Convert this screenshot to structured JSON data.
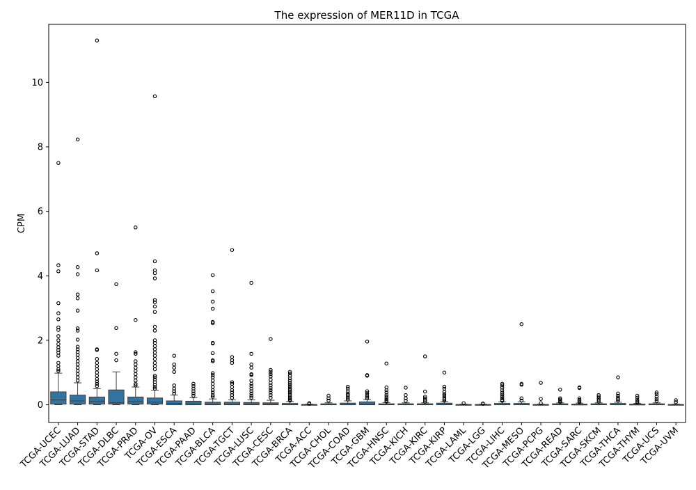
{
  "chart_data": {
    "type": "box",
    "title": "The expression of MER11D in TCGA",
    "xlabel": "",
    "ylabel": "CPM",
    "ylim": [
      -0.55,
      11.8
    ],
    "yticks": [
      0,
      2,
      4,
      6,
      8,
      10
    ],
    "box_color": "#3274a1",
    "categories": [
      "TCGA-UCEC",
      "TCGA-LUAD",
      "TCGA-STAD",
      "TCGA-DLBC",
      "TCGA-PRAD",
      "TCGA-OV",
      "TCGA-ESCA",
      "TCGA-PAAD",
      "TCGA-BLCA",
      "TCGA-TGCT",
      "TCGA-LUSC",
      "TCGA-CESC",
      "TCGA-BRCA",
      "TCGA-ACC",
      "TCGA-CHOL",
      "TCGA-COAD",
      "TCGA-GBM",
      "TCGA-HNSC",
      "TCGA-KICH",
      "TCGA-KIRC",
      "TCGA-KIRP",
      "TCGA-LAML",
      "TCGA-LGG",
      "TCGA-LIHC",
      "TCGA-MESO",
      "TCGA-PCPG",
      "TCGA-READ",
      "TCGA-SARC",
      "TCGA-SKCM",
      "TCGA-THCA",
      "TCGA-THYM",
      "TCGA-UCS",
      "TCGA-UVM"
    ],
    "boxes": [
      {
        "min": 0.0,
        "q1": 0.02,
        "median": 0.15,
        "q3": 0.4,
        "max": 0.98,
        "outliers": [
          7.5,
          4.33,
          4.14,
          3.15,
          2.84,
          2.65,
          2.4,
          2.32,
          2.13,
          2.0,
          1.88,
          1.78,
          1.7,
          1.62,
          1.52,
          1.3,
          1.2,
          1.1,
          1.05
        ]
      },
      {
        "min": 0.0,
        "q1": 0.02,
        "median": 0.12,
        "q3": 0.3,
        "max": 0.68,
        "outliers": [
          8.23,
          4.27,
          4.05,
          3.42,
          3.3,
          2.92,
          2.37,
          2.3,
          2.02,
          1.8,
          1.72,
          1.64,
          1.55,
          1.45,
          1.35,
          1.25,
          1.15,
          1.05,
          0.95,
          0.85,
          0.75
        ]
      },
      {
        "min": 0.0,
        "q1": 0.02,
        "median": 0.1,
        "q3": 0.24,
        "max": 0.5,
        "outliers": [
          11.3,
          4.7,
          4.17,
          1.72,
          1.7,
          1.42,
          1.3,
          1.2,
          1.1,
          1.0,
          0.9,
          0.8,
          0.72,
          0.65,
          0.58
        ]
      },
      {
        "min": 0.0,
        "q1": 0.02,
        "median": 0.06,
        "q3": 0.46,
        "max": 1.02,
        "outliers": [
          3.74,
          2.38,
          1.58,
          1.38
        ]
      },
      {
        "min": 0.0,
        "q1": 0.02,
        "median": 0.1,
        "q3": 0.24,
        "max": 0.55,
        "outliers": [
          5.5,
          2.63,
          1.63,
          1.58,
          1.35,
          1.25,
          1.15,
          1.05,
          0.95,
          0.85,
          0.75,
          0.65,
          0.6
        ]
      },
      {
        "min": 0.0,
        "q1": 0.02,
        "median": 0.08,
        "q3": 0.21,
        "max": 0.45,
        "outliers": [
          9.57,
          4.45,
          4.17,
          4.08,
          3.92,
          3.25,
          3.18,
          3.05,
          2.88,
          2.42,
          2.3,
          2.0,
          1.92,
          1.82,
          1.72,
          1.62,
          1.52,
          1.42,
          1.3,
          1.2,
          1.1,
          0.9,
          0.85,
          0.78,
          0.7,
          0.62,
          0.55,
          0.5
        ]
      },
      {
        "min": 0.0,
        "q1": 0.0,
        "median": 0.04,
        "q3": 0.12,
        "max": 0.3,
        "outliers": [
          1.52,
          1.25,
          1.15,
          1.02,
          0.6,
          0.5,
          0.42,
          0.35
        ]
      },
      {
        "min": 0.0,
        "q1": 0.0,
        "median": 0.03,
        "q3": 0.11,
        "max": 0.22,
        "outliers": [
          0.65,
          0.58,
          0.5,
          0.42,
          0.35,
          0.28
        ]
      },
      {
        "min": 0.0,
        "q1": 0.0,
        "median": 0.02,
        "q3": 0.08,
        "max": 0.18,
        "outliers": [
          4.02,
          3.52,
          3.2,
          2.98,
          2.57,
          2.53,
          1.92,
          1.9,
          1.6,
          1.38,
          1.35,
          0.98,
          0.92,
          0.85,
          0.75,
          0.65,
          0.55,
          0.45,
          0.38,
          0.3,
          0.25
        ]
      },
      {
        "min": 0.0,
        "q1": 0.0,
        "median": 0.02,
        "q3": 0.08,
        "max": 0.15,
        "outliers": [
          4.8,
          1.48,
          1.38,
          1.3,
          0.7,
          0.65,
          0.55,
          0.45,
          0.38,
          0.3,
          0.22
        ]
      },
      {
        "min": 0.0,
        "q1": 0.0,
        "median": 0.02,
        "q3": 0.07,
        "max": 0.15,
        "outliers": [
          3.78,
          1.58,
          1.25,
          1.15,
          0.95,
          0.92,
          0.75,
          0.65,
          0.58,
          0.5,
          0.42,
          0.35,
          0.28,
          0.22
        ]
      },
      {
        "min": 0.0,
        "q1": 0.0,
        "median": 0.02,
        "q3": 0.06,
        "max": 0.14,
        "outliers": [
          2.04,
          1.08,
          1.02,
          0.95,
          0.88,
          0.78,
          0.68,
          0.6,
          0.52,
          0.45,
          0.38,
          0.3,
          0.22
        ]
      },
      {
        "min": 0.0,
        "q1": 0.0,
        "median": 0.01,
        "q3": 0.04,
        "max": 0.1,
        "outliers": [
          1.02,
          0.97,
          0.9,
          0.82,
          0.75,
          0.68,
          0.62,
          0.56,
          0.5,
          0.45,
          0.4,
          0.35,
          0.3,
          0.25,
          0.2,
          0.16,
          0.13
        ]
      },
      {
        "min": 0.0,
        "q1": 0.0,
        "median": 0.0,
        "q3": 0.01,
        "max": 0.02,
        "outliers": [
          0.05,
          0.03
        ]
      },
      {
        "min": 0.0,
        "q1": 0.0,
        "median": 0.01,
        "q3": 0.03,
        "max": 0.06,
        "outliers": [
          0.28,
          0.2,
          0.13
        ]
      },
      {
        "min": 0.0,
        "q1": 0.0,
        "median": 0.01,
        "q3": 0.05,
        "max": 0.12,
        "outliers": [
          0.56,
          0.5,
          0.42,
          0.35,
          0.3,
          0.25,
          0.2,
          0.16
        ]
      },
      {
        "min": 0.0,
        "q1": 0.0,
        "median": 0.02,
        "q3": 0.09,
        "max": 0.16,
        "outliers": [
          1.96,
          0.92,
          0.9,
          0.42,
          0.36,
          0.3,
          0.25,
          0.2
        ]
      },
      {
        "min": 0.0,
        "q1": 0.0,
        "median": 0.01,
        "q3": 0.03,
        "max": 0.07,
        "outliers": [
          1.28,
          0.54,
          0.45,
          0.38,
          0.3,
          0.24,
          0.18,
          0.13,
          0.1
        ]
      },
      {
        "min": 0.0,
        "q1": 0.0,
        "median": 0.01,
        "q3": 0.03,
        "max": 0.06,
        "outliers": [
          0.53,
          0.3,
          0.2,
          0.12
        ]
      },
      {
        "min": 0.0,
        "q1": 0.0,
        "median": 0.01,
        "q3": 0.03,
        "max": 0.06,
        "outliers": [
          1.5,
          0.41,
          0.25,
          0.2,
          0.15,
          0.1
        ]
      },
      {
        "min": 0.0,
        "q1": 0.0,
        "median": 0.01,
        "q3": 0.05,
        "max": 0.1,
        "outliers": [
          1.0,
          0.56,
          0.5,
          0.4,
          0.33,
          0.28,
          0.22,
          0.17,
          0.13
        ]
      },
      {
        "min": 0.0,
        "q1": 0.0,
        "median": 0.0,
        "q3": 0.01,
        "max": 0.02,
        "outliers": [
          0.05
        ]
      },
      {
        "min": 0.0,
        "q1": 0.0,
        "median": 0.0,
        "q3": 0.01,
        "max": 0.02,
        "outliers": [
          0.04,
          0.03
        ]
      },
      {
        "min": 0.0,
        "q1": 0.0,
        "median": 0.01,
        "q3": 0.04,
        "max": 0.09,
        "outliers": [
          0.65,
          0.6,
          0.53,
          0.45,
          0.38,
          0.32,
          0.26,
          0.2,
          0.15,
          0.12
        ]
      },
      {
        "min": 0.0,
        "q1": 0.0,
        "median": 0.01,
        "q3": 0.04,
        "max": 0.09,
        "outliers": [
          2.5,
          0.65,
          0.62,
          0.2,
          0.13
        ]
      },
      {
        "min": 0.0,
        "q1": 0.0,
        "median": 0.0,
        "q3": 0.01,
        "max": 0.02,
        "outliers": [
          0.68,
          0.18,
          0.05
        ]
      },
      {
        "min": 0.0,
        "q1": 0.0,
        "median": 0.01,
        "q3": 0.03,
        "max": 0.06,
        "outliers": [
          0.47,
          0.2,
          0.16,
          0.12,
          0.09
        ]
      },
      {
        "min": 0.0,
        "q1": 0.0,
        "median": 0.01,
        "q3": 0.02,
        "max": 0.05,
        "outliers": [
          0.54,
          0.52,
          0.2,
          0.15,
          0.11,
          0.08
        ]
      },
      {
        "min": 0.0,
        "q1": 0.0,
        "median": 0.01,
        "q3": 0.03,
        "max": 0.06,
        "outliers": [
          0.3,
          0.25,
          0.2,
          0.15,
          0.1
        ]
      },
      {
        "min": 0.0,
        "q1": 0.0,
        "median": 0.01,
        "q3": 0.04,
        "max": 0.08,
        "outliers": [
          0.85,
          0.35,
          0.28,
          0.22,
          0.17,
          0.13
        ]
      },
      {
        "min": 0.0,
        "q1": 0.0,
        "median": 0.0,
        "q3": 0.02,
        "max": 0.04,
        "outliers": [
          0.28,
          0.22,
          0.15,
          0.1,
          0.07
        ]
      },
      {
        "min": 0.0,
        "q1": 0.0,
        "median": 0.01,
        "q3": 0.03,
        "max": 0.06,
        "outliers": [
          0.38,
          0.33,
          0.25,
          0.18,
          0.12
        ]
      },
      {
        "min": 0.0,
        "q1": 0.0,
        "median": 0.0,
        "q3": 0.01,
        "max": 0.02,
        "outliers": [
          0.14,
          0.08
        ]
      }
    ]
  }
}
